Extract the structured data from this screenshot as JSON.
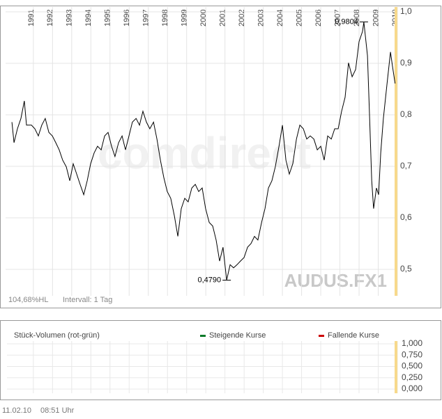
{
  "chart_data": [
    {
      "type": "line",
      "instrument": "AUDUS.FX1",
      "watermark": "comdirect",
      "info": "104,68%HL",
      "interval": "Intervall: 1 Tag",
      "xlim": [
        1989.55,
        2010.0
      ],
      "xticks": [
        1991,
        1992,
        1993,
        1994,
        1995,
        1996,
        1997,
        1998,
        1999,
        2000,
        2001,
        2002,
        2003,
        2004,
        2005,
        2006,
        2007,
        2008,
        2009,
        2010
      ],
      "ylim": [
        0.4486,
        1.0095
      ],
      "yticks": [
        {
          "value": 1.0,
          "label": "1,0"
        },
        {
          "value": 0.9,
          "label": "0,9"
        },
        {
          "value": 0.8,
          "label": "0,8"
        },
        {
          "value": 0.7,
          "label": "0,7"
        },
        {
          "value": 0.6,
          "label": "0,6"
        },
        {
          "value": 0.5,
          "label": "0,5"
        }
      ],
      "grid": true,
      "series": [
        {
          "color": "#000000",
          "x": [
            1989.88,
            1989.99,
            1990.17,
            1990.35,
            1990.53,
            1990.64,
            1990.9,
            1991.08,
            1991.26,
            1991.44,
            1991.62,
            1991.81,
            1991.99,
            1992.17,
            1992.35,
            1992.53,
            1992.72,
            1992.9,
            1993.08,
            1993.26,
            1993.44,
            1993.63,
            1993.81,
            1993.99,
            1994.17,
            1994.35,
            1994.54,
            1994.72,
            1994.9,
            1995.08,
            1995.26,
            1995.45,
            1995.63,
            1995.81,
            1995.99,
            1996.17,
            1996.36,
            1996.54,
            1996.72,
            1996.9,
            1997.08,
            1997.27,
            1997.45,
            1997.63,
            1997.81,
            1997.99,
            1998.17,
            1998.36,
            1998.54,
            1998.72,
            1998.9,
            1999.08,
            1999.27,
            1999.45,
            1999.63,
            1999.81,
            1999.99,
            2000.18,
            2000.36,
            2000.54,
            2000.72,
            2000.9,
            2001.09,
            2001.27,
            2001.45,
            2001.63,
            2001.81,
            2002.0,
            2002.18,
            2002.36,
            2002.54,
            2002.72,
            2002.91,
            2003.09,
            2003.27,
            2003.45,
            2003.63,
            2003.82,
            2004.0,
            2004.18,
            2004.36,
            2004.54,
            2004.73,
            2004.91,
            2005.09,
            2005.27,
            2005.45,
            2005.64,
            2005.82,
            2006.0,
            2006.18,
            2006.36,
            2006.55,
            2006.73,
            2006.91,
            2007.09,
            2007.27,
            2007.45,
            2007.64,
            2007.82,
            2008.0,
            2008.18,
            2008.25,
            2008.44,
            2008.55,
            2008.66,
            2008.76,
            2008.91,
            2009.02,
            2009.13,
            2009.27,
            2009.46,
            2009.64,
            2009.74,
            2009.88
          ],
          "values": [
            0.786,
            0.746,
            0.773,
            0.793,
            0.827,
            0.78,
            0.78,
            0.773,
            0.759,
            0.78,
            0.793,
            0.766,
            0.759,
            0.746,
            0.732,
            0.712,
            0.699,
            0.672,
            0.705,
            0.685,
            0.665,
            0.645,
            0.672,
            0.705,
            0.726,
            0.739,
            0.732,
            0.759,
            0.766,
            0.739,
            0.719,
            0.746,
            0.759,
            0.732,
            0.759,
            0.786,
            0.793,
            0.78,
            0.807,
            0.786,
            0.773,
            0.786,
            0.753,
            0.712,
            0.678,
            0.651,
            0.638,
            0.604,
            0.564,
            0.618,
            0.638,
            0.631,
            0.658,
            0.665,
            0.651,
            0.658,
            0.618,
            0.591,
            0.584,
            0.557,
            0.516,
            0.543,
            0.479,
            0.509,
            0.503,
            0.509,
            0.516,
            0.523,
            0.543,
            0.55,
            0.564,
            0.557,
            0.591,
            0.618,
            0.658,
            0.672,
            0.699,
            0.739,
            0.78,
            0.712,
            0.685,
            0.705,
            0.753,
            0.78,
            0.773,
            0.753,
            0.759,
            0.753,
            0.732,
            0.739,
            0.712,
            0.759,
            0.753,
            0.773,
            0.773,
            0.807,
            0.834,
            0.901,
            0.874,
            0.888,
            0.942,
            0.962,
            0.9804,
            0.915,
            0.793,
            0.672,
            0.618,
            0.658,
            0.645,
            0.726,
            0.793,
            0.861,
            0.922,
            0.895,
            0.861
          ]
        }
      ],
      "annotations": [
        {
          "text": "0,9804",
          "x": 2008.25,
          "y": 0.9804
        },
        {
          "text": "0,4790",
          "x": 2001.09,
          "y": 0.479
        }
      ]
    },
    {
      "type": "bar",
      "title": "Stück-Volumen (rot-grün)",
      "ylim": [
        0,
        1
      ],
      "yticks": [
        {
          "value": 1,
          "label": "1,000"
        },
        {
          "value": 0.75,
          "label": "0,750"
        },
        {
          "value": 0.5,
          "label": "0,500"
        },
        {
          "value": 0.25,
          "label": "0,250"
        },
        {
          "value": 0,
          "label": "0,000"
        }
      ],
      "series": [
        {
          "name": "Steigende Kurse",
          "color": "#0a7a2a",
          "values": []
        },
        {
          "name": "Fallende Kurse",
          "color": "#cc0000",
          "values": []
        }
      ],
      "timestamp": {
        "date": "11.02.10",
        "time": "08:51 Uhr"
      }
    }
  ]
}
